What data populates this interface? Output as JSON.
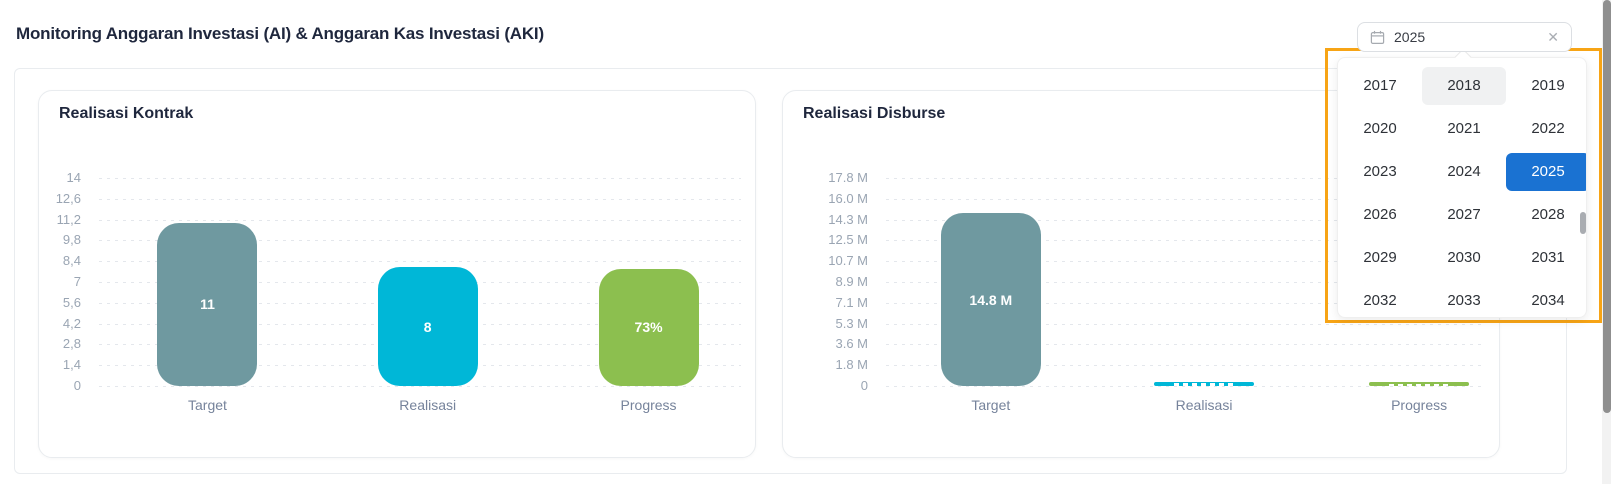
{
  "page": {
    "title": "Monitoring Anggaran Investasi (AI) & Anggaran Kas Investasi (AKI)"
  },
  "year_picker": {
    "value": "2025",
    "clear_glyph": "✕",
    "selected_year": "2025",
    "focused_year": "2018",
    "years": [
      "2017",
      "2018",
      "2019",
      "2020",
      "2021",
      "2022",
      "2023",
      "2024",
      "2025",
      "2026",
      "2027",
      "2028",
      "2029",
      "2030",
      "2031",
      "2032",
      "2033",
      "2034"
    ],
    "highlight_color": "#f7a415",
    "selected_color": "#1a72d2"
  },
  "chart_data": [
    {
      "type": "bar",
      "title": "Realisasi Kontrak",
      "categories": [
        "Target",
        "Realisasi",
        "Progress"
      ],
      "values": [
        11,
        8,
        7.9
      ],
      "bar_labels": [
        "11",
        "8",
        "73%"
      ],
      "label_fragments": [
        false,
        false,
        false
      ],
      "bar_colors": [
        "#6f99a0",
        "#00b7d7",
        "#8cbf4f"
      ],
      "yticks": [
        "14",
        "12,6",
        "11,2",
        "9,8",
        "8,4",
        "7",
        "5,6",
        "4,2",
        "2,8",
        "1,4",
        "0"
      ],
      "ylim": [
        0,
        14
      ],
      "grid": "dashed-horizontal",
      "legend": "none"
    },
    {
      "type": "bar",
      "title": "Realisasi Disburse",
      "categories": [
        "Target",
        "Realisasi",
        "Progress"
      ],
      "values": [
        14.8,
        0.38,
        0.32
      ],
      "bar_labels": [
        "14.8 M",
        "",
        ""
      ],
      "label_fragments": [
        false,
        true,
        true
      ],
      "bar_colors": [
        "#6f99a0",
        "#00b7d7",
        "#8cbf4f"
      ],
      "yticks": [
        "17.8 M",
        "16.0 M",
        "14.3 M",
        "12.5 M",
        "10.7 M",
        "8.9 M",
        "7.1 M",
        "5.3 M",
        "3.6 M",
        "1.8 M",
        "0"
      ],
      "ylim": [
        0,
        17.8
      ],
      "unit": "M",
      "grid": "dashed-horizontal",
      "legend": "none"
    }
  ]
}
